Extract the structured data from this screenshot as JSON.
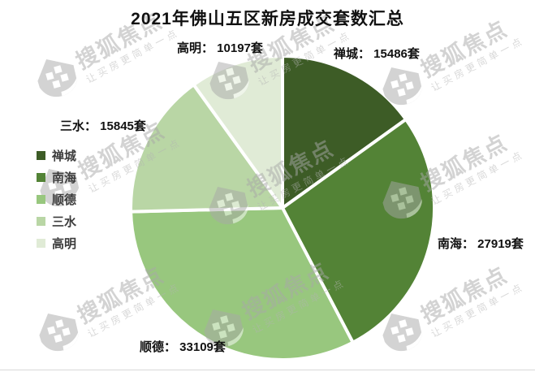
{
  "title": "2021年佛山五区新房成交套数汇总",
  "chart_data": {
    "type": "pie",
    "title": "2021年佛山五区新房成交套数汇总",
    "categories": [
      "禅城",
      "南海",
      "顺德",
      "三水",
      "高明"
    ],
    "values": [
      15486,
      27919,
      33109,
      15845,
      10197
    ],
    "unit": "套",
    "colors": [
      "#3d5c26",
      "#538336",
      "#98c77e",
      "#b9d6a5",
      "#e0ebd6"
    ],
    "start_angle": "12-oclock",
    "direction": "clockwise",
    "legend_position": "left",
    "slice_labels": [
      "禅城： 15486套",
      "南海： 27919套",
      "顺德： 33109套",
      "三水： 15845套",
      "高明： 10197套"
    ]
  },
  "legend": {
    "items": [
      {
        "label": "禅城",
        "color": "#3d5c26"
      },
      {
        "label": "南海",
        "color": "#538336"
      },
      {
        "label": "顺德",
        "color": "#98c77e"
      },
      {
        "label": "三水",
        "color": "#b9d6a5"
      },
      {
        "label": "高明",
        "color": "#e0ebd6"
      }
    ]
  },
  "watermark": {
    "brand": "搜狐焦点",
    "tagline": "让买房更简单一点"
  }
}
